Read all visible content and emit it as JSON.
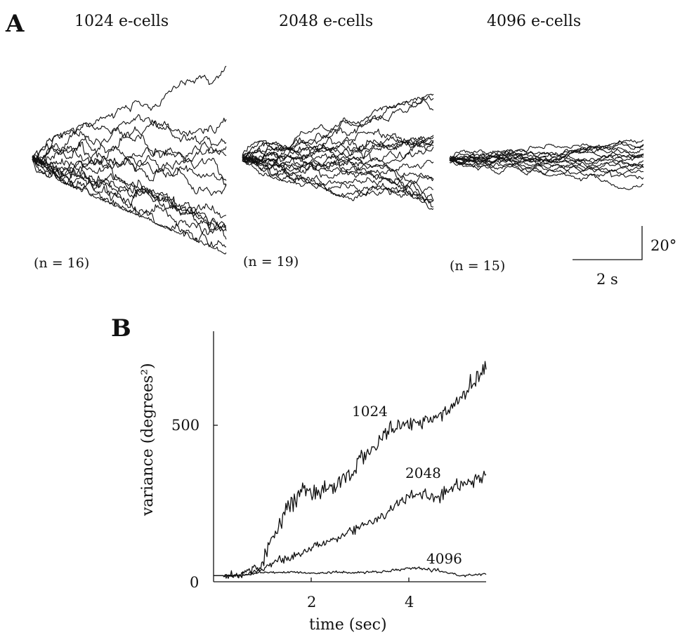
{
  "panel_a": {
    "letter": "A",
    "scale_bar": {
      "x_label": "2 s",
      "y_label": "20°"
    },
    "panels": [
      {
        "title": "1024 e-cells",
        "n_label": "(n = 16)",
        "n": 16,
        "spread": 1.0
      },
      {
        "title": "2048 e-cells",
        "n_label": "(n = 19)",
        "n": 19,
        "spread": 0.62
      },
      {
        "title": "4096 e-cells",
        "n_label": "(n = 15)",
        "n": 15,
        "spread": 0.22
      }
    ]
  },
  "panel_b": {
    "letter": "B",
    "xlabel": "time (sec)",
    "ylabel": "variance (degrees²)",
    "xticks": [
      "2",
      "4"
    ],
    "yticks": [
      "0",
      "500"
    ]
  },
  "chart_data": [
    {
      "type": "line",
      "title": "",
      "xlabel": "time (sec)",
      "ylabel": "variance (degrees²)",
      "xlim": [
        0,
        5.5
      ],
      "ylim": [
        0,
        750
      ],
      "x": [
        0,
        0.5,
        1.0,
        1.2,
        1.5,
        1.8,
        2.0,
        2.5,
        3.0,
        3.5,
        4.0,
        4.5,
        5.0,
        5.5
      ],
      "series": [
        {
          "name": "1024",
          "values": [
            20,
            20,
            60,
            150,
            240,
            300,
            270,
            310,
            390,
            480,
            510,
            520,
            590,
            690
          ]
        },
        {
          "name": "2048",
          "values": [
            20,
            20,
            40,
            60,
            75,
            90,
            110,
            140,
            180,
            220,
            280,
            270,
            310,
            340
          ]
        },
        {
          "name": "4096",
          "values": [
            20,
            20,
            30,
            30,
            30,
            30,
            28,
            30,
            30,
            32,
            45,
            35,
            20,
            25
          ]
        }
      ]
    }
  ]
}
